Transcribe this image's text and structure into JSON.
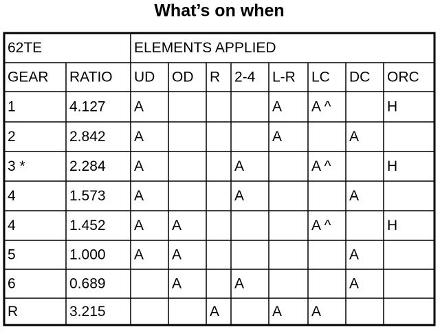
{
  "header": {
    "title": "What’s on when"
  },
  "table": {
    "top": [
      "62TE",
      "ELEMENTS APPLIED"
    ],
    "columns": [
      "GEAR",
      "RATIO",
      "UD",
      "OD",
      "R",
      "2-4",
      "L-R",
      "LC",
      "DC",
      "ORC"
    ],
    "rows": [
      [
        "1",
        "4.127",
        "A",
        null,
        null,
        null,
        "A",
        "A ^",
        null,
        "H"
      ],
      [
        "2",
        "2.842",
        "A",
        null,
        null,
        null,
        "A",
        null,
        "A",
        null
      ],
      [
        "3 *",
        "2.284",
        "A",
        null,
        null,
        "A",
        null,
        "A ^",
        null,
        "H"
      ],
      [
        "4",
        "1.573",
        "A",
        null,
        null,
        "A",
        null,
        null,
        "A",
        null
      ],
      [
        "4",
        "1.452",
        "A",
        "A",
        null,
        null,
        null,
        "A ^",
        null,
        "H"
      ],
      [
        "5",
        "1.000",
        "A",
        "A",
        null,
        null,
        null,
        null,
        "A",
        null
      ],
      [
        "6",
        "0.689",
        null,
        "A",
        null,
        "A",
        null,
        null,
        "A",
        null
      ],
      [
        "R",
        "3.215",
        null,
        null,
        "A",
        null,
        "A",
        "A",
        null,
        null
      ]
    ]
  }
}
